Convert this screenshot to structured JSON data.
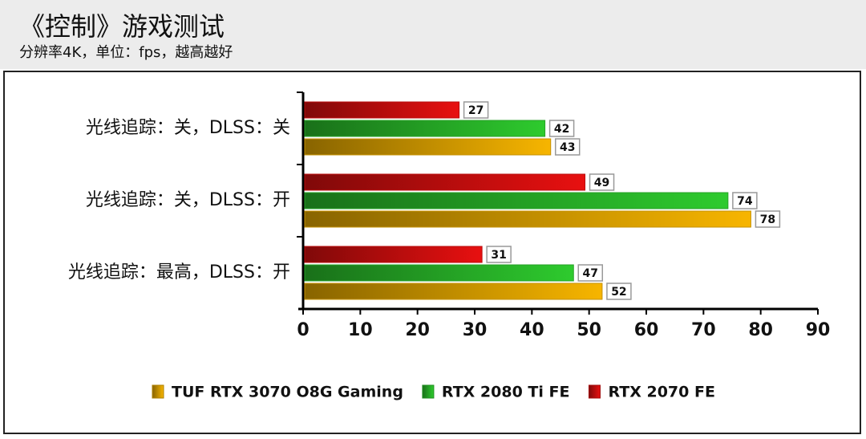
{
  "chart_data": {
    "type": "bar",
    "orientation": "horizontal",
    "title": "《控制》游戏测试",
    "subtitle": "分辨率4K，单位：fps，越高越好",
    "categories": [
      "光线追踪：关，DLSS：关",
      "光线追踪：关，DLSS：开",
      "光线追踪：最高，DLSS：开"
    ],
    "series": [
      {
        "name": "TUF RTX 3070 O8G Gaming",
        "color": "#f7b500",
        "values": [
          43,
          78,
          52
        ]
      },
      {
        "name": "RTX 2080 Ti FE",
        "color": "#2ecb2e",
        "values": [
          42,
          74,
          47
        ]
      },
      {
        "name": "RTX 2070 FE",
        "color": "#e81010",
        "values": [
          27,
          49,
          31
        ]
      }
    ],
    "xlim": [
      0,
      90
    ],
    "xticks": [
      0,
      10,
      20,
      30,
      40,
      50,
      60,
      70,
      80,
      90
    ],
    "legend": "bottom"
  }
}
